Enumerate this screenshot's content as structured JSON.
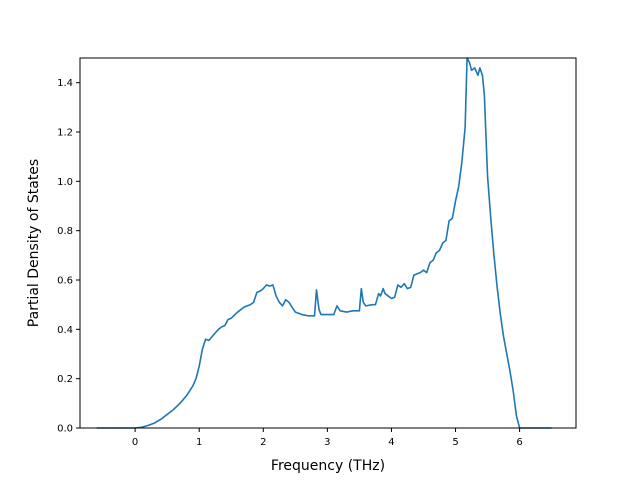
{
  "chart_data": {
    "type": "line",
    "title": "",
    "xlabel": "Frequency (THz)",
    "ylabel": "Partial Density of States",
    "xlim": [
      -0.86,
      6.88
    ],
    "ylim": [
      0.0,
      1.5
    ],
    "grid": false,
    "legend": "none",
    "xticks": [
      0,
      1,
      2,
      3,
      4,
      5,
      6
    ],
    "xtick_labels": [
      "0",
      "1",
      "2",
      "3",
      "4",
      "5",
      "6"
    ],
    "yticks": [
      0.0,
      0.2,
      0.4,
      0.6,
      0.8,
      1.0,
      1.2,
      1.4
    ],
    "ytick_labels": [
      "0.0",
      "0.2",
      "0.4",
      "0.6",
      "0.8",
      "1.0",
      "1.2",
      "1.4"
    ],
    "series": [
      {
        "color": "#1f77b4",
        "x": [
          -0.6,
          -0.3,
          0.0,
          0.1,
          0.2,
          0.3,
          0.4,
          0.5,
          0.55,
          0.6,
          0.7,
          0.8,
          0.9,
          0.95,
          1.0,
          1.05,
          1.1,
          1.15,
          1.2,
          1.25,
          1.3,
          1.35,
          1.4,
          1.45,
          1.5,
          1.6,
          1.7,
          1.8,
          1.85,
          1.9,
          1.95,
          2.0,
          2.05,
          2.1,
          2.15,
          2.2,
          2.25,
          2.3,
          2.35,
          2.4,
          2.45,
          2.5,
          2.55,
          2.6,
          2.7,
          2.8,
          2.83,
          2.87,
          2.9,
          3.0,
          3.1,
          3.15,
          3.2,
          3.3,
          3.4,
          3.5,
          3.53,
          3.56,
          3.6,
          3.7,
          3.75,
          3.8,
          3.83,
          3.87,
          3.9,
          4.0,
          4.05,
          4.1,
          4.15,
          4.2,
          4.25,
          4.3,
          4.35,
          4.4,
          4.45,
          4.5,
          4.55,
          4.6,
          4.65,
          4.7,
          4.75,
          4.8,
          4.85,
          4.9,
          4.95,
          5.0,
          5.05,
          5.1,
          5.15,
          5.18,
          5.22,
          5.25,
          5.3,
          5.35,
          5.38,
          5.42,
          5.45,
          5.5,
          5.55,
          5.6,
          5.65,
          5.7,
          5.75,
          5.8,
          5.85,
          5.9,
          5.95,
          6.0,
          6.5
        ],
        "y": [
          0.0,
          0.0,
          0.0,
          0.003,
          0.01,
          0.02,
          0.035,
          0.055,
          0.065,
          0.075,
          0.1,
          0.13,
          0.17,
          0.2,
          0.25,
          0.32,
          0.36,
          0.355,
          0.37,
          0.385,
          0.4,
          0.41,
          0.415,
          0.44,
          0.445,
          0.47,
          0.49,
          0.5,
          0.51,
          0.55,
          0.555,
          0.565,
          0.58,
          0.575,
          0.58,
          0.535,
          0.51,
          0.495,
          0.52,
          0.51,
          0.49,
          0.47,
          0.465,
          0.46,
          0.455,
          0.455,
          0.56,
          0.48,
          0.46,
          0.46,
          0.46,
          0.495,
          0.475,
          0.47,
          0.475,
          0.475,
          0.565,
          0.51,
          0.495,
          0.5,
          0.5,
          0.545,
          0.535,
          0.565,
          0.545,
          0.525,
          0.53,
          0.58,
          0.57,
          0.585,
          0.565,
          0.57,
          0.62,
          0.625,
          0.63,
          0.64,
          0.63,
          0.67,
          0.68,
          0.71,
          0.72,
          0.75,
          0.76,
          0.84,
          0.85,
          0.92,
          0.98,
          1.08,
          1.22,
          1.5,
          1.48,
          1.45,
          1.46,
          1.43,
          1.46,
          1.43,
          1.35,
          1.02,
          0.85,
          0.7,
          0.57,
          0.46,
          0.37,
          0.3,
          0.23,
          0.15,
          0.05,
          0.0,
          0.0
        ]
      }
    ]
  }
}
